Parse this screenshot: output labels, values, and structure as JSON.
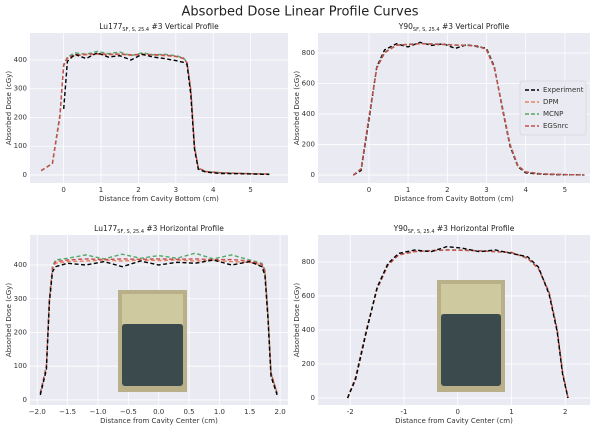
{
  "suptitle": "Absorbed Dose Linear Profile Curves",
  "chart_data": [
    {
      "type": "line",
      "title": "Lu177",
      "title_sub": "SF, S, 25.4",
      "title_suffix": " #3 Vertical Profile",
      "xlabel": "Distance from Cavity Bottom (cm)",
      "ylabel": "Absorbed Dose (cGy)",
      "xlim": [
        -0.9,
        6.0
      ],
      "ylim": [
        -28,
        494
      ],
      "xticks": [
        0,
        1,
        2,
        3,
        4,
        5
      ],
      "yticks": [
        0,
        100,
        200,
        300,
        400
      ],
      "grid": true,
      "x": [
        -0.6,
        -0.3,
        -0.1,
        0,
        0.1,
        0.3,
        0.6,
        0.9,
        1.2,
        1.5,
        1.8,
        2.1,
        2.4,
        2.7,
        3.0,
        3.2,
        3.3,
        3.4,
        3.5,
        3.6,
        3.8,
        4.2,
        4.8,
        5.5
      ],
      "series": [
        {
          "color": "#e8825a",
          "values": [
            15,
            40,
            200,
            380,
            405,
            415,
            418,
            420,
            418,
            420,
            416,
            418,
            417,
            415,
            412,
            405,
            390,
            300,
            100,
            25,
            12,
            8,
            5,
            3
          ]
        },
        {
          "color": "#55a868",
          "values": [
            15,
            40,
            210,
            385,
            410,
            425,
            420,
            430,
            422,
            428,
            415,
            425,
            418,
            420,
            415,
            408,
            392,
            290,
            95,
            22,
            12,
            8,
            5,
            3
          ]
        },
        {
          "color": "#c44e52",
          "values": [
            15,
            40,
            205,
            382,
            408,
            418,
            420,
            422,
            420,
            421,
            418,
            420,
            419,
            417,
            413,
            406,
            391,
            295,
            98,
            24,
            12,
            8,
            5,
            3
          ]
        },
        {
          "color": "#000000",
          "values": [
            null,
            null,
            null,
            230,
            395,
            420,
            405,
            425,
            410,
            415,
            400,
            420,
            410,
            405,
            398,
            392,
            385,
            280,
            90,
            20,
            10,
            5,
            4,
            2
          ]
        }
      ]
    },
    {
      "type": "line",
      "title": "Y90",
      "title_sub": "SF, S, 25.4",
      "title_suffix": " #3 Vertical Profile",
      "xlabel": "Distance from Cavity Bottom (cm)",
      "ylabel": "Absorbed Dose (cGy)",
      "xlim": [
        -1.3,
        5.64
      ],
      "ylim": [
        -52,
        931
      ],
      "xticks": [
        0,
        1,
        2,
        3,
        4,
        5
      ],
      "yticks": [
        0,
        200,
        400,
        600,
        800
      ],
      "grid": true,
      "legend": "center right",
      "x": [
        -0.4,
        -0.2,
        0,
        0.2,
        0.4,
        0.7,
        1,
        1.3,
        1.6,
        1.9,
        2.2,
        2.5,
        2.8,
        3.0,
        3.2,
        3.4,
        3.6,
        3.8,
        4.0,
        4.4,
        5.0,
        5.5
      ],
      "series": [
        {
          "name": "Experiment",
          "color": "#000000",
          "values": [
            0,
            30,
            360,
            710,
            820,
            860,
            840,
            870,
            850,
            860,
            830,
            855,
            840,
            830,
            710,
            440,
            190,
            55,
            15,
            5,
            2,
            1
          ]
        },
        {
          "name": "DPM",
          "color": "#e8825a",
          "values": [
            0,
            40,
            380,
            700,
            800,
            850,
            855,
            860,
            858,
            855,
            852,
            850,
            845,
            820,
            700,
            450,
            200,
            60,
            20,
            8,
            3,
            1
          ]
        },
        {
          "name": "MCNP",
          "color": "#55a868",
          "values": [
            0,
            42,
            385,
            705,
            805,
            852,
            857,
            862,
            860,
            857,
            853,
            851,
            846,
            822,
            702,
            452,
            202,
            62,
            21,
            8,
            3,
            1
          ]
        },
        {
          "name": "EGSnrc",
          "color": "#c44e52",
          "values": [
            0,
            41,
            382,
            702,
            802,
            851,
            856,
            861,
            859,
            856,
            852,
            850,
            845,
            821,
            701,
            451,
            201,
            61,
            20,
            8,
            3,
            1
          ]
        }
      ]
    },
    {
      "type": "line",
      "title": "Lu177",
      "title_sub": "SF, S, 25.4",
      "title_suffix": " #3 Horizontal Profile",
      "xlabel": "Distance from Cavity Center (cm)",
      "ylabel": "Absorbed Dose (cGy)",
      "xlim": [
        -2.12,
        2.13
      ],
      "ylim": [
        -15,
        489
      ],
      "xticks": [
        {
          "value": -2,
          "label": "−2.0"
        },
        {
          "value": -1.5,
          "label": "−1.5"
        },
        {
          "value": -1,
          "label": "−1.0"
        },
        {
          "value": -0.5,
          "label": "−0.5"
        },
        {
          "value": 0,
          "label": "0.0"
        },
        0.5,
        {
          "value": 1,
          "label": "1.0"
        },
        1.5,
        {
          "value": 2,
          "label": "2.0"
        }
      ],
      "yticks": [
        0,
        100,
        200,
        300,
        400
      ],
      "grid": true,
      "x": [
        -1.95,
        -1.85,
        -1.8,
        -1.75,
        -1.7,
        -1.5,
        -1.2,
        -0.9,
        -0.6,
        -0.3,
        0,
        0.3,
        0.6,
        0.9,
        1.2,
        1.5,
        1.7,
        1.75,
        1.8,
        1.85,
        1.95
      ],
      "series": [
        {
          "color": "#e8825a",
          "values": [
            20,
            100,
            300,
            390,
            405,
            410,
            412,
            415,
            412,
            415,
            413,
            415,
            412,
            414,
            410,
            408,
            400,
            380,
            250,
            80,
            20
          ]
        },
        {
          "color": "#55a868",
          "values": [
            20,
            100,
            300,
            395,
            415,
            420,
            430,
            418,
            432,
            420,
            428,
            420,
            435,
            418,
            430,
            415,
            405,
            385,
            250,
            80,
            20
          ]
        },
        {
          "color": "#c44e52",
          "values": [
            20,
            100,
            300,
            392,
            410,
            415,
            418,
            416,
            418,
            417,
            418,
            417,
            418,
            416,
            416,
            412,
            402,
            382,
            250,
            80,
            20
          ]
        },
        {
          "color": "#000000",
          "values": [
            15,
            90,
            290,
            380,
            395,
            405,
            400,
            410,
            395,
            412,
            400,
            408,
            405,
            415,
            400,
            410,
            395,
            370,
            240,
            70,
            15
          ]
        }
      ]
    },
    {
      "type": "line",
      "title": "Y90",
      "title_sub": "SF, S, 25.4",
      "title_suffix": " #3 Horizontal Profile",
      "xlabel": "Distance from Cavity Center (cm)",
      "ylabel": "Absorbed Dose (cGy)",
      "xlim": [
        -2.6,
        2.46
      ],
      "ylim": [
        -41,
        958
      ],
      "xticks": [
        -2,
        -1,
        0,
        1,
        2
      ],
      "yticks": [
        0,
        200,
        400,
        600,
        800
      ],
      "grid": true,
      "x": [
        -2.05,
        -1.9,
        -1.7,
        -1.5,
        -1.3,
        -1.1,
        -0.8,
        -0.5,
        -0.2,
        0.1,
        0.4,
        0.7,
        1.0,
        1.3,
        1.5,
        1.7,
        1.85,
        1.95,
        2.05
      ],
      "series": [
        {
          "color": "#e8825a",
          "values": [
            0,
            120,
            400,
            640,
            780,
            840,
            860,
            865,
            870,
            868,
            865,
            860,
            855,
            820,
            760,
            620,
            400,
            150,
            0
          ]
        },
        {
          "color": "#55a868",
          "values": [
            0,
            122,
            402,
            642,
            782,
            842,
            862,
            866,
            871,
            869,
            866,
            861,
            856,
            822,
            762,
            622,
            402,
            152,
            0
          ]
        },
        {
          "color": "#c44e52",
          "values": [
            0,
            121,
            401,
            641,
            781,
            841,
            861,
            866,
            870,
            868,
            865,
            860,
            855,
            821,
            761,
            621,
            401,
            151,
            0
          ]
        },
        {
          "color": "#000000",
          "values": [
            0,
            110,
            390,
            650,
            790,
            850,
            870,
            860,
            890,
            880,
            860,
            870,
            850,
            830,
            770,
            610,
            390,
            140,
            0
          ]
        }
      ]
    }
  ]
}
